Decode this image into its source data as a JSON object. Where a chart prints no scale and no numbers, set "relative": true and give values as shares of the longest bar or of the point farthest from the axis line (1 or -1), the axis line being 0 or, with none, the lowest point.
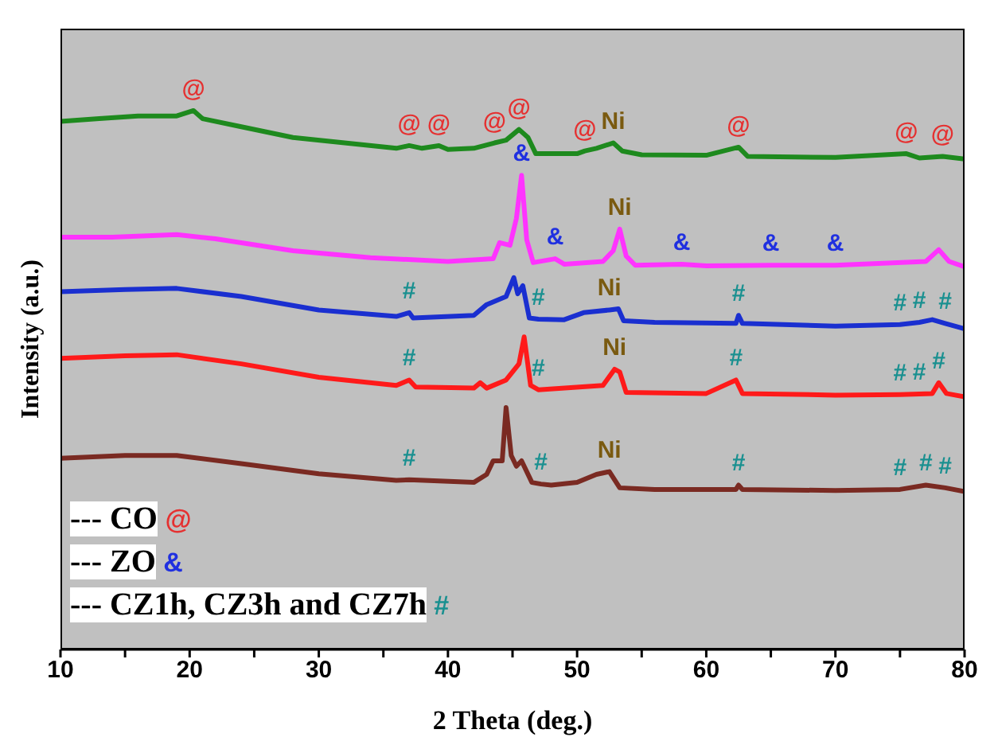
{
  "chart_data": {
    "type": "line",
    "relative": true,
    "xlabel": "2 Theta (deg.)",
    "ylabel": "Intensity (a.u.)",
    "xlim": [
      10,
      80
    ],
    "xticks": [
      10,
      {
        "value": 15,
        "label": null
      },
      20,
      {
        "value": 25,
        "label": null
      },
      30,
      {
        "value": 35,
        "label": null
      },
      40,
      {
        "value": 45,
        "label": null
      },
      50,
      {
        "value": 55,
        "label": null
      },
      60,
      {
        "value": 65,
        "label": null
      },
      70,
      {
        "value": 75,
        "label": null
      },
      80
    ],
    "series": [
      {
        "color": "#1e8a1e",
        "x": [
          10,
          13,
          16,
          19,
          20.3,
          21,
          24,
          28,
          32,
          36,
          37,
          38,
          39.3,
          40,
          42,
          43.6,
          44.5,
          45.5,
          46.2,
          46.8,
          50,
          50.6,
          51.5,
          52.8,
          53.5,
          55,
          60,
          62.5,
          63.2,
          70,
          75.5,
          76.5,
          78.3,
          80
        ],
        "values": [
          0.98,
          0.985,
          0.99,
          0.99,
          1.0,
          0.985,
          0.97,
          0.95,
          0.94,
          0.93,
          0.935,
          0.93,
          0.935,
          0.928,
          0.93,
          0.94,
          0.945,
          0.965,
          0.95,
          0.92,
          0.92,
          0.925,
          0.93,
          0.94,
          0.925,
          0.918,
          0.917,
          0.932,
          0.915,
          0.913,
          0.92,
          0.912,
          0.915,
          0.91
        ]
      },
      {
        "color": "#ff33ff",
        "x": [
          10,
          14,
          19,
          22,
          28,
          34,
          40,
          43.5,
          44,
          44.8,
          45.3,
          45.7,
          46.1,
          46.6,
          48.3,
          49,
          52,
          52.8,
          53.3,
          53.8,
          54.5,
          58.1,
          60,
          65,
          70,
          77,
          78,
          78.8,
          80
        ],
        "values": [
          0.765,
          0.765,
          0.77,
          0.762,
          0.74,
          0.727,
          0.72,
          0.725,
          0.755,
          0.75,
          0.8,
          0.88,
          0.76,
          0.718,
          0.725,
          0.715,
          0.72,
          0.74,
          0.78,
          0.73,
          0.713,
          0.715,
          0.712,
          0.713,
          0.713,
          0.72,
          0.742,
          0.72,
          0.71
        ]
      },
      {
        "color": "#1a2fd0",
        "x": [
          10,
          15,
          19,
          24,
          30,
          36,
          37,
          37.3,
          42,
          43,
          44.5,
          45.1,
          45.4,
          45.8,
          46.3,
          47,
          49,
          50.5,
          52.5,
          53.2,
          53.6,
          56,
          62.3,
          62.5,
          62.8,
          70,
          75,
          76.5,
          77.5,
          78.5,
          80
        ],
        "values": [
          0.664,
          0.668,
          0.67,
          0.655,
          0.63,
          0.618,
          0.625,
          0.615,
          0.62,
          0.64,
          0.655,
          0.69,
          0.66,
          0.675,
          0.615,
          0.613,
          0.612,
          0.625,
          0.63,
          0.632,
          0.61,
          0.607,
          0.605,
          0.62,
          0.605,
          0.6,
          0.603,
          0.607,
          0.612,
          0.605,
          0.595
        ]
      },
      {
        "color": "#ff1a1a",
        "x": [
          10,
          15,
          19,
          24,
          30,
          36,
          37,
          37.5,
          42,
          42.5,
          43,
          44.5,
          45.5,
          45.9,
          46.4,
          47,
          52,
          52.9,
          53.3,
          53.8,
          60,
          62.3,
          62.8,
          70,
          75,
          76.5,
          77.5,
          78,
          78.6,
          80
        ],
        "values": [
          0.54,
          0.545,
          0.547,
          0.53,
          0.505,
          0.49,
          0.5,
          0.487,
          0.485,
          0.495,
          0.485,
          0.5,
          0.53,
          0.58,
          0.49,
          0.482,
          0.49,
          0.52,
          0.515,
          0.477,
          0.475,
          0.5,
          0.475,
          0.472,
          0.473,
          0.474,
          0.475,
          0.495,
          0.475,
          0.469
        ]
      },
      {
        "color": "#7a2a22",
        "x": [
          10,
          15,
          19,
          24,
          30,
          36,
          37,
          42,
          43,
          43.5,
          44.2,
          44.5,
          44.9,
          45.3,
          45.7,
          46.5,
          47.2,
          48,
          50,
          51.5,
          52.5,
          53.3,
          56,
          62.3,
          62.5,
          62.8,
          70,
          75,
          77,
          78.5,
          80
        ],
        "values": [
          0.355,
          0.36,
          0.36,
          0.345,
          0.326,
          0.314,
          0.315,
          0.31,
          0.325,
          0.35,
          0.35,
          0.449,
          0.36,
          0.34,
          0.35,
          0.31,
          0.307,
          0.305,
          0.31,
          0.325,
          0.33,
          0.3,
          0.297,
          0.297,
          0.305,
          0.297,
          0.295,
          0.297,
          0.305,
          0.3,
          0.293
        ]
      }
    ],
    "annotations": [
      {
        "text": "@",
        "x": 20.3,
        "y": 1.0
      },
      {
        "text": "@",
        "x": 37,
        "y": 0.935
      },
      {
        "text": "@",
        "x": 39.3,
        "y": 0.935
      },
      {
        "text": "@",
        "x": 43.6,
        "y": 0.94
      },
      {
        "text": "@",
        "x": 45.5,
        "y": 0.965
      },
      {
        "text": "@",
        "x": 50.6,
        "y": 0.925
      },
      {
        "text": "Ni",
        "x": 52.8,
        "y": 0.94
      },
      {
        "text": "@",
        "x": 62.5,
        "y": 0.932
      },
      {
        "text": "@",
        "x": 75.5,
        "y": 0.92
      },
      {
        "text": "@",
        "x": 78.3,
        "y": 0.915
      },
      {
        "text": "&",
        "x": 45.7,
        "y": 0.88
      },
      {
        "text": "&",
        "x": 48.3,
        "y": 0.725
      },
      {
        "text": "Ni",
        "x": 53.3,
        "y": 0.78
      },
      {
        "text": "&",
        "x": 58.1,
        "y": 0.715
      },
      {
        "text": "&",
        "x": 65,
        "y": 0.713
      },
      {
        "text": "&",
        "x": 70,
        "y": 0.713
      },
      {
        "text": "#",
        "x": 37,
        "y": 0.625
      },
      {
        "text": "#",
        "x": 47,
        "y": 0.613
      },
      {
        "text": "Ni",
        "x": 52.5,
        "y": 0.63
      },
      {
        "text": "#",
        "x": 62.5,
        "y": 0.62
      },
      {
        "text": "#",
        "x": 75,
        "y": 0.603
      },
      {
        "text": "#",
        "x": 76.5,
        "y": 0.607
      },
      {
        "text": "#",
        "x": 78.5,
        "y": 0.605
      },
      {
        "text": "#",
        "x": 37,
        "y": 0.5
      },
      {
        "text": "#",
        "x": 47,
        "y": 0.482
      },
      {
        "text": "Ni",
        "x": 52.9,
        "y": 0.52
      },
      {
        "text": "#",
        "x": 62.3,
        "y": 0.5
      },
      {
        "text": "#",
        "x": 75,
        "y": 0.473
      },
      {
        "text": "#",
        "x": 76.5,
        "y": 0.474
      },
      {
        "text": "#",
        "x": 78,
        "y": 0.495
      },
      {
        "text": "#",
        "x": 37,
        "y": 0.315
      },
      {
        "text": "#",
        "x": 47.2,
        "y": 0.307
      },
      {
        "text": "Ni",
        "x": 52.5,
        "y": 0.33
      },
      {
        "text": "#",
        "x": 62.5,
        "y": 0.305
      },
      {
        "text": "#",
        "x": 75,
        "y": 0.297
      },
      {
        "text": "#",
        "x": 77,
        "y": 0.305
      },
      {
        "text": "#",
        "x": 78.5,
        "y": 0.3
      },
      "--- CO @",
      "--- ZO &",
      "--- CZ1h, CZ3h and CZ7h #"
    ]
  }
}
